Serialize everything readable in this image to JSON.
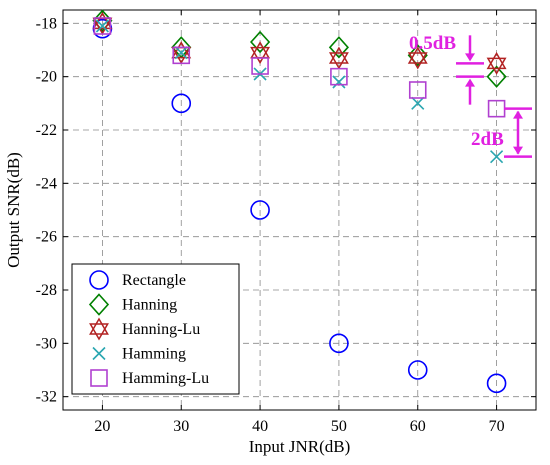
{
  "chart_data": {
    "type": "scatter",
    "title": "",
    "xlabel": "Input JNR(dB)",
    "ylabel": "Output SNR(dB)",
    "xlim": [
      15,
      75
    ],
    "ylim": [
      -32.5,
      -17.5
    ],
    "xticks": [
      20,
      30,
      40,
      50,
      60,
      70
    ],
    "yticks": [
      -32,
      -30,
      -28,
      -26,
      -24,
      -22,
      -20,
      -18
    ],
    "x_tick_labels": [
      "20",
      "30",
      "40",
      "50",
      "60",
      "70"
    ],
    "y_tick_labels": [
      "-32",
      "-30",
      "-28",
      "-26",
      "-24",
      "-22",
      "-20",
      "-18"
    ],
    "grid": true,
    "legend_position": "bottom-left",
    "series": [
      {
        "name": "Rectangle",
        "marker": "circle",
        "color": "#0000ff",
        "x": [
          20,
          30,
          40,
          50,
          60,
          70
        ],
        "y": [
          -18.2,
          -21.0,
          -25.0,
          -30.0,
          -31.0,
          -31.5
        ]
      },
      {
        "name": "Hanning",
        "marker": "diamond",
        "color": "#008000",
        "x": [
          20,
          30,
          40,
          50,
          60,
          70
        ],
        "y": [
          -17.9,
          -18.9,
          -18.7,
          -18.9,
          -19.2,
          -20.0
        ]
      },
      {
        "name": "Hanning-Lu",
        "marker": "hexagram",
        "color": "#b22222",
        "x": [
          20,
          30,
          40,
          50,
          60,
          70
        ],
        "y": [
          -18.0,
          -19.1,
          -19.1,
          -19.3,
          -19.3,
          -19.5
        ]
      },
      {
        "name": "Hamming",
        "marker": "x",
        "color": "#2aa6b0",
        "x": [
          20,
          30,
          40,
          50,
          60,
          70
        ],
        "y": [
          -18.1,
          -19.1,
          -19.9,
          -20.2,
          -21.0,
          -23.0
        ]
      },
      {
        "name": "Hamming-Lu",
        "marker": "square",
        "color": "#b040d0",
        "x": [
          20,
          30,
          40,
          50,
          60,
          70
        ],
        "y": [
          -18.1,
          -19.2,
          -19.6,
          -20.0,
          -20.5,
          -21.2
        ]
      }
    ],
    "annotations": [
      {
        "text": "0.5dB",
        "color": "#e020e0",
        "y_from": -19.5,
        "y_to": -20.0
      },
      {
        "text": "2dB",
        "color": "#e020e0",
        "y_from": -21.2,
        "y_to": -23.0
      }
    ]
  }
}
